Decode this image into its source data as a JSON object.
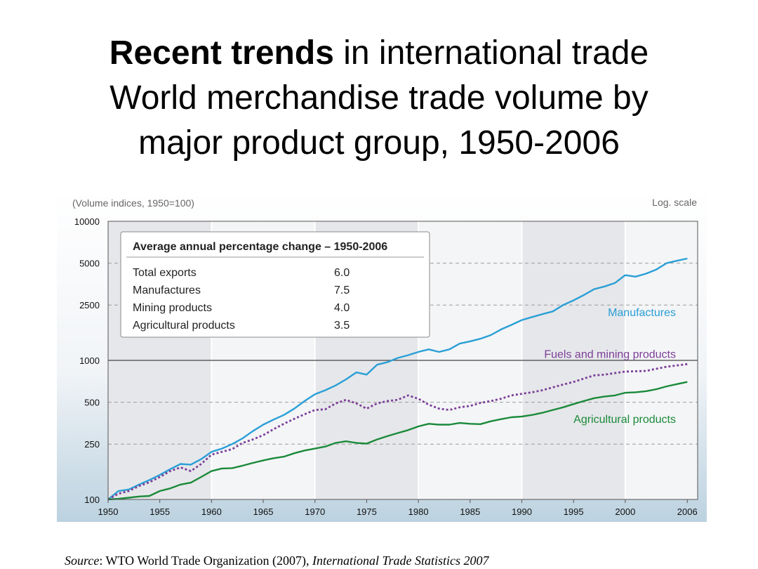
{
  "slide": {
    "title_bold": "Recent trends",
    "title_rest": " in international trade",
    "title_line2": "World merchandise trade volume by",
    "title_line3": "major product group, 1950-2006"
  },
  "source": {
    "label": "Source",
    "text": ": WTO World Trade Organization (2007), ",
    "publication": "International Trade Statistics 2007"
  },
  "colors": {
    "manufactures": "#2a9fd6",
    "fuels": "#7b3f98",
    "agricultural": "#1a8a3a"
  },
  "chart_data": {
    "type": "line",
    "ylabel": "(Volume indices, 1950=100)",
    "scale_note": "Log. scale",
    "yscale": "log",
    "ylim": [
      100,
      10000
    ],
    "xlim": [
      1950,
      2007
    ],
    "yticks": [
      10000,
      5000,
      2500,
      1000,
      500,
      250,
      100
    ],
    "xticks": [
      1950,
      1955,
      1960,
      1965,
      1970,
      1975,
      1980,
      1985,
      1990,
      1995,
      2000,
      2006
    ],
    "table": {
      "title": "Average annual percentage change – 1950-2006",
      "rows": [
        {
          "label": "Total exports",
          "value": "6.0"
        },
        {
          "label": "Manufactures",
          "value": "7.5"
        },
        {
          "label": "Mining products",
          "value": "4.0"
        },
        {
          "label": "Agricultural products",
          "value": "3.5"
        }
      ]
    },
    "series": [
      {
        "name": "Manufactures",
        "x": [
          1950,
          1951,
          1952,
          1953,
          1954,
          1955,
          1956,
          1957,
          1958,
          1959,
          1960,
          1961,
          1962,
          1963,
          1964,
          1965,
          1966,
          1967,
          1968,
          1969,
          1970,
          1971,
          1972,
          1973,
          1974,
          1975,
          1976,
          1977,
          1978,
          1979,
          1980,
          1981,
          1982,
          1983,
          1984,
          1985,
          1986,
          1987,
          1988,
          1989,
          1990,
          1991,
          1992,
          1993,
          1994,
          1995,
          1996,
          1997,
          1998,
          1999,
          2000,
          2001,
          2002,
          2003,
          2004,
          2005,
          2006
        ],
        "values": [
          100,
          115,
          118,
          128,
          138,
          150,
          165,
          180,
          178,
          195,
          220,
          232,
          250,
          275,
          310,
          345,
          375,
          405,
          450,
          510,
          570,
          610,
          660,
          730,
          820,
          790,
          930,
          970,
          1040,
          1090,
          1150,
          1200,
          1150,
          1200,
          1320,
          1370,
          1430,
          1520,
          1670,
          1800,
          1950,
          2050,
          2150,
          2250,
          2500,
          2700,
          2950,
          3250,
          3400,
          3600,
          4100,
          4000,
          4200,
          4500,
          5000,
          5200,
          5400
        ]
      },
      {
        "name": "Fuels and mining products",
        "x": [
          1950,
          1951,
          1952,
          1953,
          1954,
          1955,
          1956,
          1957,
          1958,
          1959,
          1960,
          1961,
          1962,
          1963,
          1964,
          1965,
          1966,
          1967,
          1968,
          1969,
          1970,
          1971,
          1972,
          1973,
          1974,
          1975,
          1976,
          1977,
          1978,
          1979,
          1980,
          1981,
          1982,
          1983,
          1984,
          1985,
          1986,
          1987,
          1988,
          1989,
          1990,
          1991,
          1992,
          1993,
          1994,
          1995,
          1996,
          1997,
          1998,
          1999,
          2000,
          2001,
          2002,
          2003,
          2004,
          2005,
          2006
        ],
        "values": [
          100,
          110,
          115,
          125,
          133,
          145,
          160,
          170,
          160,
          180,
          210,
          220,
          230,
          255,
          270,
          290,
          320,
          350,
          380,
          410,
          440,
          445,
          490,
          520,
          490,
          450,
          490,
          510,
          520,
          560,
          530,
          480,
          450,
          440,
          460,
          470,
          495,
          510,
          530,
          560,
          575,
          590,
          610,
          640,
          670,
          700,
          740,
          780,
          790,
          810,
          830,
          835,
          840,
          870,
          900,
          920,
          940
        ]
      },
      {
        "name": "Agricultural products",
        "x": [
          1950,
          1951,
          1952,
          1953,
          1954,
          1955,
          1956,
          1957,
          1958,
          1959,
          1960,
          1961,
          1962,
          1963,
          1964,
          1965,
          1966,
          1967,
          1968,
          1969,
          1970,
          1971,
          1972,
          1973,
          1974,
          1975,
          1976,
          1977,
          1978,
          1979,
          1980,
          1981,
          1982,
          1983,
          1984,
          1985,
          1986,
          1987,
          1988,
          1989,
          1990,
          1991,
          1992,
          1993,
          1994,
          1995,
          1996,
          1997,
          1998,
          1999,
          2000,
          2001,
          2002,
          2003,
          2004,
          2005,
          2006
        ],
        "values": [
          100,
          101,
          103,
          105,
          106,
          115,
          120,
          128,
          132,
          145,
          160,
          167,
          168,
          175,
          183,
          191,
          198,
          203,
          215,
          225,
          232,
          240,
          255,
          262,
          255,
          252,
          270,
          285,
          300,
          315,
          335,
          350,
          345,
          345,
          355,
          350,
          348,
          365,
          378,
          390,
          395,
          405,
          420,
          440,
          460,
          485,
          510,
          535,
          550,
          560,
          585,
          590,
          600,
          620,
          650,
          675,
          700
        ]
      }
    ]
  }
}
